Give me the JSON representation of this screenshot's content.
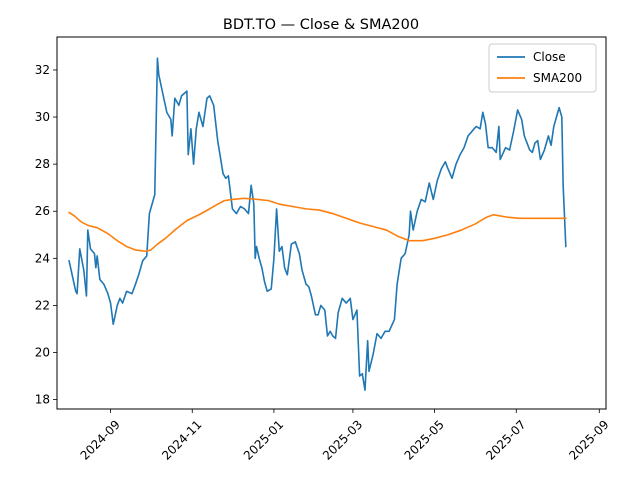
{
  "chart_data": {
    "type": "line",
    "title": "BDT.TO — Close & SMA200",
    "xlabel": "",
    "ylabel": "",
    "x_ticks": [
      "2024-09-01",
      "2024-11-01",
      "2025-01-01",
      "2025-03-01",
      "2025-05-01",
      "2025-07-01",
      "2025-09-01"
    ],
    "x_tick_labels": [
      "2024-09",
      "2024-11",
      "2025-01",
      "2025-03",
      "2025-05",
      "2025-07",
      "2025-09"
    ],
    "xlim": [
      "2024-07-23",
      "2025-09-06"
    ],
    "y_ticks": [
      18,
      20,
      22,
      24,
      26,
      28,
      30,
      32
    ],
    "ylim": [
      17.6,
      33.4
    ],
    "grid": false,
    "legend_position": "top-right",
    "series": [
      {
        "name": "Close",
        "color": "#1f77b4",
        "points": [
          [
            "2024-08-01",
            23.9
          ],
          [
            "2024-08-06",
            22.6
          ],
          [
            "2024-08-07",
            22.5
          ],
          [
            "2024-08-09",
            24.4
          ],
          [
            "2024-08-12",
            23.5
          ],
          [
            "2024-08-14",
            22.4
          ],
          [
            "2024-08-15",
            25.2
          ],
          [
            "2024-08-17",
            24.4
          ],
          [
            "2024-08-20",
            24.2
          ],
          [
            "2024-08-21",
            23.6
          ],
          [
            "2024-08-22",
            24.1
          ],
          [
            "2024-08-24",
            23.1
          ],
          [
            "2024-08-27",
            22.9
          ],
          [
            "2024-08-30",
            22.5
          ],
          [
            "2024-09-01",
            22.1
          ],
          [
            "2024-09-03",
            21.2
          ],
          [
            "2024-09-06",
            22.0
          ],
          [
            "2024-09-08",
            22.3
          ],
          [
            "2024-09-10",
            22.1
          ],
          [
            "2024-09-13",
            22.6
          ],
          [
            "2024-09-17",
            22.5
          ],
          [
            "2024-09-19",
            22.8
          ],
          [
            "2024-09-22",
            23.3
          ],
          [
            "2024-09-25",
            23.9
          ],
          [
            "2024-09-28",
            24.1
          ],
          [
            "2024-09-30",
            25.9
          ],
          [
            "2024-10-04",
            26.7
          ],
          [
            "2024-10-06",
            32.5
          ],
          [
            "2024-10-07",
            31.8
          ],
          [
            "2024-10-10",
            31.0
          ],
          [
            "2024-10-13",
            30.2
          ],
          [
            "2024-10-16",
            29.9
          ],
          [
            "2024-10-17",
            29.2
          ],
          [
            "2024-10-19",
            30.8
          ],
          [
            "2024-10-22",
            30.5
          ],
          [
            "2024-10-24",
            30.9
          ],
          [
            "2024-10-28",
            31.1
          ],
          [
            "2024-10-29",
            28.4
          ],
          [
            "2024-10-31",
            29.5
          ],
          [
            "2024-11-02",
            28.0
          ],
          [
            "2024-11-04",
            29.5
          ],
          [
            "2024-11-06",
            30.2
          ],
          [
            "2024-11-09",
            29.6
          ],
          [
            "2024-11-12",
            30.8
          ],
          [
            "2024-11-14",
            30.9
          ],
          [
            "2024-11-17",
            30.5
          ],
          [
            "2024-11-20",
            29.0
          ],
          [
            "2024-11-24",
            27.6
          ],
          [
            "2024-11-26",
            27.4
          ],
          [
            "2024-11-28",
            27.5
          ],
          [
            "2024-12-01",
            26.1
          ],
          [
            "2024-12-04",
            25.9
          ],
          [
            "2024-12-07",
            26.2
          ],
          [
            "2024-12-10",
            26.1
          ],
          [
            "2024-12-13",
            25.9
          ],
          [
            "2024-12-15",
            27.1
          ],
          [
            "2024-12-17",
            26.3
          ],
          [
            "2024-12-18",
            24.0
          ],
          [
            "2024-12-19",
            24.5
          ],
          [
            "2024-12-21",
            24.0
          ],
          [
            "2024-12-23",
            23.6
          ],
          [
            "2024-12-25",
            23.0
          ],
          [
            "2024-12-27",
            22.6
          ],
          [
            "2024-12-30",
            22.7
          ],
          [
            "2025-01-01",
            24.0
          ],
          [
            "2025-01-03",
            26.1
          ],
          [
            "2025-01-05",
            24.3
          ],
          [
            "2025-01-07",
            24.5
          ],
          [
            "2025-01-09",
            23.6
          ],
          [
            "2025-01-11",
            23.3
          ],
          [
            "2025-01-14",
            24.6
          ],
          [
            "2025-01-17",
            24.7
          ],
          [
            "2025-01-20",
            24.2
          ],
          [
            "2025-01-22",
            23.5
          ],
          [
            "2025-01-25",
            22.9
          ],
          [
            "2025-01-27",
            22.8
          ],
          [
            "2025-01-29",
            22.4
          ],
          [
            "2025-02-01",
            21.6
          ],
          [
            "2025-02-03",
            21.6
          ],
          [
            "2025-02-05",
            22.0
          ],
          [
            "2025-02-08",
            21.8
          ],
          [
            "2025-02-10",
            20.7
          ],
          [
            "2025-02-12",
            20.9
          ],
          [
            "2025-02-14",
            20.7
          ],
          [
            "2025-02-16",
            20.6
          ],
          [
            "2025-02-18",
            21.7
          ],
          [
            "2025-02-21",
            22.3
          ],
          [
            "2025-02-24",
            22.1
          ],
          [
            "2025-02-27",
            22.3
          ],
          [
            "2025-03-01",
            21.4
          ],
          [
            "2025-03-04",
            21.8
          ],
          [
            "2025-03-06",
            19.0
          ],
          [
            "2025-03-08",
            19.1
          ],
          [
            "2025-03-10",
            18.4
          ],
          [
            "2025-03-12",
            20.5
          ],
          [
            "2025-03-13",
            19.2
          ],
          [
            "2025-03-16",
            19.9
          ],
          [
            "2025-03-19",
            20.8
          ],
          [
            "2025-03-22",
            20.6
          ],
          [
            "2025-03-25",
            20.9
          ],
          [
            "2025-03-28",
            20.9
          ],
          [
            "2025-04-01",
            21.4
          ],
          [
            "2025-04-03",
            22.9
          ],
          [
            "2025-04-06",
            24.0
          ],
          [
            "2025-04-09",
            24.2
          ],
          [
            "2025-04-12",
            25.0
          ],
          [
            "2025-04-13",
            26.0
          ],
          [
            "2025-04-15",
            25.2
          ],
          [
            "2025-04-18",
            26.0
          ],
          [
            "2025-04-21",
            26.5
          ],
          [
            "2025-04-24",
            26.4
          ],
          [
            "2025-04-27",
            27.2
          ],
          [
            "2025-04-30",
            26.5
          ],
          [
            "2025-05-03",
            27.3
          ],
          [
            "2025-05-06",
            27.8
          ],
          [
            "2025-05-09",
            28.1
          ],
          [
            "2025-05-11",
            27.8
          ],
          [
            "2025-05-14",
            27.4
          ],
          [
            "2025-05-17",
            28.0
          ],
          [
            "2025-05-20",
            28.4
          ],
          [
            "2025-05-23",
            28.7
          ],
          [
            "2025-05-26",
            29.2
          ],
          [
            "2025-05-29",
            29.4
          ],
          [
            "2025-06-01",
            29.6
          ],
          [
            "2025-06-04",
            29.5
          ],
          [
            "2025-06-06",
            30.2
          ],
          [
            "2025-06-08",
            29.7
          ],
          [
            "2025-06-10",
            28.7
          ],
          [
            "2025-06-13",
            28.7
          ],
          [
            "2025-06-16",
            28.5
          ],
          [
            "2025-06-18",
            29.6
          ],
          [
            "2025-06-19",
            28.2
          ],
          [
            "2025-06-23",
            28.7
          ],
          [
            "2025-06-26",
            28.6
          ],
          [
            "2025-06-29",
            29.4
          ],
          [
            "2025-07-02",
            30.3
          ],
          [
            "2025-07-05",
            29.9
          ],
          [
            "2025-07-07",
            29.2
          ],
          [
            "2025-07-09",
            28.9
          ],
          [
            "2025-07-11",
            28.6
          ],
          [
            "2025-07-13",
            28.5
          ],
          [
            "2025-07-15",
            28.9
          ],
          [
            "2025-07-17",
            29.0
          ],
          [
            "2025-07-19",
            28.2
          ],
          [
            "2025-07-22",
            28.6
          ],
          [
            "2025-07-25",
            29.2
          ],
          [
            "2025-07-27",
            28.8
          ],
          [
            "2025-07-29",
            29.6
          ],
          [
            "2025-08-02",
            30.4
          ],
          [
            "2025-08-04",
            30.0
          ],
          [
            "2025-08-05",
            27.1
          ],
          [
            "2025-08-07",
            24.5
          ]
        ]
      },
      {
        "name": "SMA200",
        "color": "#ff7f0e",
        "points": [
          [
            "2024-08-01",
            25.95
          ],
          [
            "2024-08-05",
            25.8
          ],
          [
            "2024-08-10",
            25.55
          ],
          [
            "2024-08-15",
            25.4
          ],
          [
            "2024-08-22",
            25.3
          ],
          [
            "2024-08-30",
            25.05
          ],
          [
            "2024-09-06",
            24.75
          ],
          [
            "2024-09-13",
            24.5
          ],
          [
            "2024-09-20",
            24.35
          ],
          [
            "2024-09-27",
            24.3
          ],
          [
            "2024-10-01",
            24.35
          ],
          [
            "2024-10-06",
            24.6
          ],
          [
            "2024-10-12",
            24.85
          ],
          [
            "2024-10-20",
            25.25
          ],
          [
            "2024-10-28",
            25.6
          ],
          [
            "2024-11-06",
            25.85
          ],
          [
            "2024-11-14",
            26.1
          ],
          [
            "2024-11-20",
            26.3
          ],
          [
            "2024-11-25",
            26.45
          ],
          [
            "2024-12-01",
            26.5
          ],
          [
            "2024-12-10",
            26.55
          ],
          [
            "2024-12-20",
            26.5
          ],
          [
            "2024-12-28",
            26.45
          ],
          [
            "2025-01-05",
            26.3
          ],
          [
            "2025-01-15",
            26.2
          ],
          [
            "2025-01-25",
            26.1
          ],
          [
            "2025-02-04",
            26.05
          ],
          [
            "2025-02-14",
            25.9
          ],
          [
            "2025-02-24",
            25.7
          ],
          [
            "2025-03-06",
            25.5
          ],
          [
            "2025-03-16",
            25.35
          ],
          [
            "2025-03-26",
            25.2
          ],
          [
            "2025-04-03",
            24.95
          ],
          [
            "2025-04-12",
            24.75
          ],
          [
            "2025-04-22",
            24.75
          ],
          [
            "2025-05-01",
            24.85
          ],
          [
            "2025-05-11",
            25.0
          ],
          [
            "2025-05-21",
            25.2
          ],
          [
            "2025-05-31",
            25.45
          ],
          [
            "2025-06-09",
            25.75
          ],
          [
            "2025-06-14",
            25.85
          ],
          [
            "2025-06-19",
            25.8
          ],
          [
            "2025-06-24",
            25.75
          ],
          [
            "2025-07-03",
            25.7
          ],
          [
            "2025-07-12",
            25.7
          ],
          [
            "2025-07-20",
            25.7
          ],
          [
            "2025-07-28",
            25.7
          ],
          [
            "2025-08-07",
            25.7
          ]
        ]
      }
    ]
  }
}
